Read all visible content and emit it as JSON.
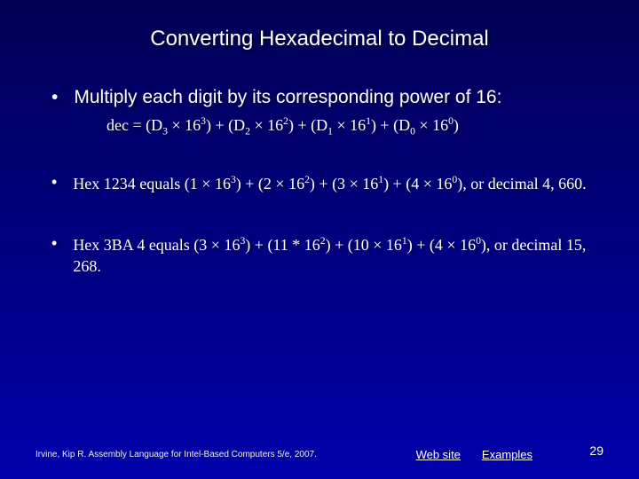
{
  "title": "Converting Hexadecimal to Decimal",
  "bullet_main": "Multiply each digit by its corresponding power of 16:",
  "formula_prefix": "dec = (D",
  "formula_d3_sub": "3",
  "formula_d3_exp": "3",
  "formula_d2_sub": "2",
  "formula_d2_exp": "2",
  "formula_d1_sub": "1",
  "formula_d1_exp": "1",
  "formula_d0_sub": "0",
  "formula_d0_exp": "0",
  "times": "×",
  "base": "16",
  "example1_prefix": "Hex 1234 equals (1 ",
  "example1_mid1": ") + (2 ",
  "example1_mid2": ") + (3 ",
  "example1_mid3": ") + (4 ",
  "example1_suffix": "), or decimal 4, 660.",
  "example2_prefix": "Hex 3BA 4 equals (3 ",
  "example2_mid1": ") + (11 * 16",
  "example2_mid2": ") + (10 ",
  "example2_mid3": ") + (4 ",
  "example2_suffix": "), or decimal 15, 268.",
  "exp3": "3",
  "exp2": "2",
  "exp1": "1",
  "exp0": "0",
  "footer_cite": "Irvine, Kip R. Assembly Language for Intel-Based Computers 5/e, 2007.",
  "link_website": "Web site",
  "link_examples": "Examples",
  "page_number": "29"
}
